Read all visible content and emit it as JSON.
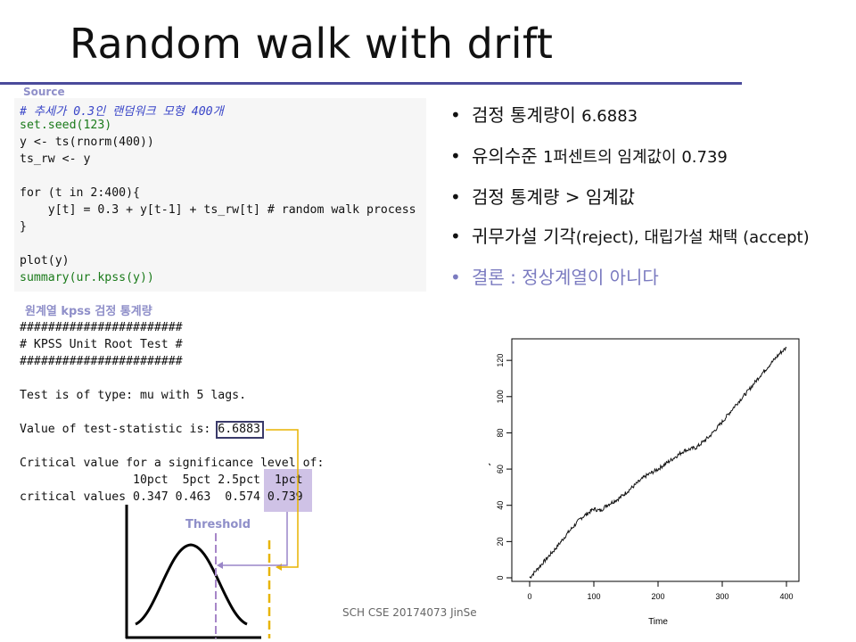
{
  "slide": {
    "title": "Random walk with drift",
    "footer": "SCH CSE 20174073 JinSe"
  },
  "source": {
    "label": "Source",
    "code_lines": [
      "# 추세가 0.3인 랜덤워크 모형 400개",
      "set.seed(123)",
      "y <- ts(rnorm(400))",
      "ts_rw <- y",
      "",
      "for (t in 2:400){",
      "    y[t] = 0.3 + y[t-1] + ts_rw[t] # random walk process",
      "}",
      "",
      "plot(y)",
      "summary(ur.kpss(y))"
    ]
  },
  "kpss": {
    "label": "원계열 kpss 검정 통계량",
    "output_lines": [
      "#######################",
      "# KPSS Unit Root Test #",
      "#######################",
      "",
      "Test is of type: mu with 5 lags.",
      "",
      "Value of test-statistic is: 6.6883",
      "",
      "Critical value for a significance level of:",
      "                10pct  5pct 2.5pct  1pct",
      "critical values 0.347 0.463  0.574 0.739"
    ]
  },
  "bullets": [
    {
      "main": "검정 통계량이 ",
      "value": "6.6883"
    },
    {
      "main": "유의수준 ",
      "value": "1퍼센트의 임계값이 0.739"
    },
    {
      "main": "검정 통계량 ",
      "value": "> 임계값"
    },
    {
      "main": "귀무가설 기각",
      "value": "(reject), 대립가설 채택 (accept)"
    },
    {
      "main": "결론 : 정상계열이 아니다",
      "value": ""
    }
  ],
  "threshold_label": "Threshold",
  "chart_data": {
    "type": "line",
    "xlabel": "Time",
    "ylabel": "y",
    "xlim": [
      0,
      400
    ],
    "ylim": [
      0,
      125
    ],
    "x_ticks": [
      0,
      100,
      200,
      300,
      400
    ],
    "y_ticks": [
      0,
      20,
      40,
      60,
      80,
      100,
      120
    ],
    "series": [
      {
        "x": [
          0,
          20,
          40,
          60,
          80,
          100,
          110,
          120,
          140,
          160,
          180,
          200,
          220,
          240,
          260,
          280,
          300,
          320,
          340,
          360,
          380,
          390,
          400
        ],
        "values": [
          0,
          8,
          16,
          25,
          33,
          38,
          37,
          40,
          44,
          50,
          56,
          60,
          65,
          70,
          72,
          78,
          86,
          95,
          103,
          112,
          120,
          124,
          127
        ]
      }
    ]
  }
}
